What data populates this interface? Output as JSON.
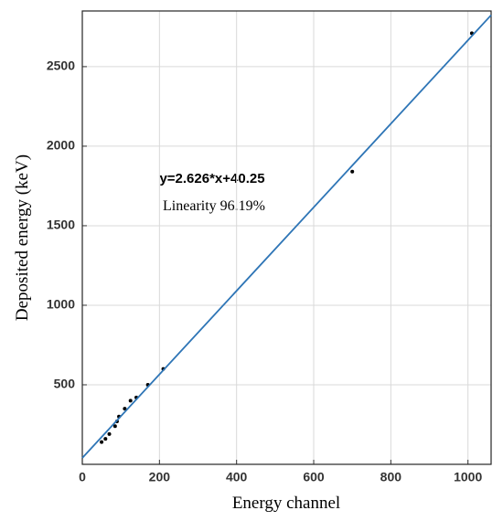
{
  "chart_data": {
    "type": "scatter",
    "xlabel": "Energy channel",
    "ylabel": "Deposited energy (keV)",
    "annotations": [
      "y=2.626*x+40.25",
      "Linearity 96.19%"
    ],
    "series": [
      {
        "color": "#000000",
        "mode": "markers",
        "x": [
          50,
          60,
          70,
          85,
          90,
          95,
          110,
          125,
          140,
          170,
          210,
          700,
          1010
        ],
        "values": [
          140,
          160,
          190,
          240,
          270,
          300,
          350,
          400,
          420,
          500,
          600,
          1840,
          2710
        ]
      },
      {
        "color": "#2e75b6",
        "mode": "line",
        "x": [
          0,
          1060
        ],
        "values": [
          40.25,
          2823.81
        ]
      }
    ],
    "xlim": [
      0,
      1060
    ],
    "ylim": [
      0,
      2850
    ],
    "xticks": [
      0,
      200,
      400,
      600,
      800,
      1000
    ],
    "yticks": [
      500,
      1000,
      1500,
      2000,
      2500
    ],
    "grid": true
  }
}
